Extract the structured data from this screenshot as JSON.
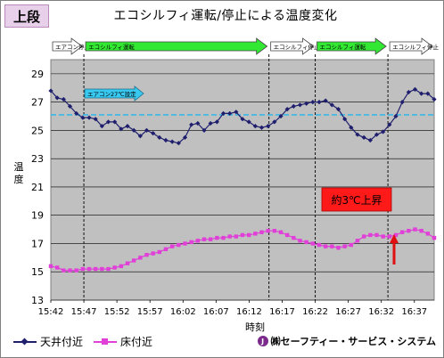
{
  "badge": "上段",
  "chart_data": {
    "type": "line",
    "title": "エコシルフィ運転/停止による温度変化",
    "xlabel": "時刻",
    "ylabel": "温度",
    "ylim": [
      13,
      30
    ],
    "yticks": [
      13,
      15,
      17,
      19,
      21,
      23,
      25,
      27,
      29
    ],
    "x_start": "15:42",
    "x_end": "16:40",
    "xticks": [
      "15:42",
      "15:47",
      "15:52",
      "15:57",
      "16:02",
      "16:07",
      "16:12",
      "16:17",
      "16:22",
      "16:27",
      "16:32",
      "16:37"
    ],
    "grid": true,
    "reference_line": 26.1,
    "series": [
      {
        "name": "天井付近",
        "color": "#1f1f6e",
        "marker": "diamond",
        "values": [
          27.8,
          27.3,
          27.2,
          26.7,
          26.2,
          25.9,
          25.9,
          25.8,
          25.3,
          25.6,
          25.6,
          25.1,
          25.3,
          25.0,
          24.6,
          25.0,
          24.8,
          24.5,
          24.3,
          24.2,
          24.1,
          24.5,
          25.4,
          25.5,
          25.0,
          25.5,
          25.6,
          26.2,
          26.2,
          26.3,
          25.8,
          25.6,
          25.3,
          25.2,
          25.3,
          25.6,
          26.0,
          26.5,
          26.7,
          26.8,
          26.9,
          27.0,
          27.0,
          27.1,
          26.8,
          26.5,
          25.8,
          25.2,
          24.7,
          24.5,
          24.3,
          24.7,
          24.9,
          25.4,
          26.0,
          27.0,
          27.7,
          27.9,
          27.6,
          27.6,
          27.2
        ]
      },
      {
        "name": "床付近",
        "color": "#e040d8",
        "marker": "square",
        "values": [
          15.4,
          15.3,
          15.1,
          15.1,
          15.1,
          15.2,
          15.2,
          15.2,
          15.2,
          15.2,
          15.3,
          15.4,
          15.6,
          15.8,
          16.0,
          16.2,
          16.3,
          16.4,
          16.6,
          16.8,
          16.9,
          17.0,
          17.1,
          17.2,
          17.3,
          17.3,
          17.4,
          17.4,
          17.5,
          17.5,
          17.6,
          17.6,
          17.7,
          17.8,
          17.9,
          17.9,
          17.8,
          17.6,
          17.4,
          17.2,
          17.1,
          17.0,
          16.9,
          16.8,
          16.8,
          16.7,
          16.8,
          16.9,
          17.2,
          17.5,
          17.6,
          17.6,
          17.5,
          17.5,
          17.6,
          17.8,
          17.9,
          18.0,
          17.9,
          17.7,
          17.4
        ]
      }
    ],
    "annotation": {
      "label": "約3℃上昇"
    },
    "phases": [
      {
        "label": "エアコン停止運転",
        "start": "15:42",
        "end": "15:47",
        "color": "#ffffff"
      },
      {
        "label": "エコシルフィ運転",
        "start": "15:47",
        "end": "16:15",
        "color": "#33e833"
      },
      {
        "label": "エコシルフィ停止",
        "start": "16:15",
        "end": "16:22",
        "color": "#ffffff"
      },
      {
        "label": "エコシルフィ運転",
        "start": "16:22",
        "end": "16:33",
        "color": "#33e833"
      },
      {
        "label": "エコシルフィ停止",
        "start": "16:33",
        "end": "16:40",
        "color": "#ffffff"
      }
    ],
    "notes": [
      {
        "label": "エアコン27℃設定"
      }
    ]
  },
  "logo": "㈱セーフティー・サービス・システム"
}
